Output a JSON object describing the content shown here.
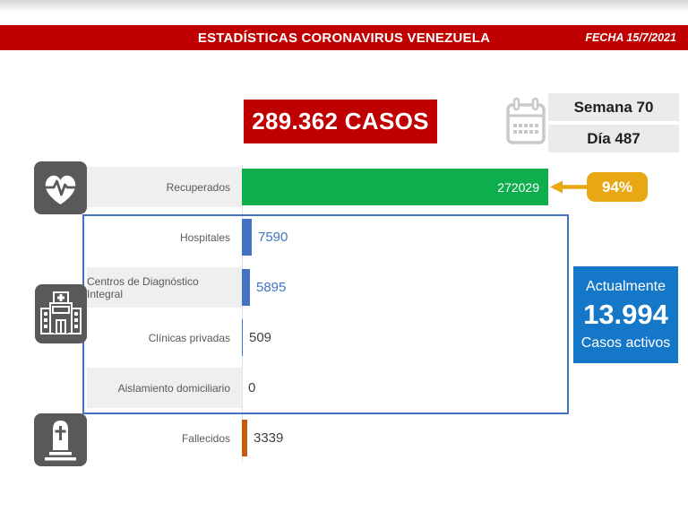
{
  "banner": {
    "title": "ESTADÍSTICAS CORONAVIRUS VENEZUELA",
    "date": "FECHA 15/7/2021"
  },
  "summary": {
    "total": "289.362 CASOS",
    "week": "Semana 70",
    "day": "Día 487"
  },
  "recovered": {
    "percent": "94%"
  },
  "active_box": {
    "heading": "Actualmente",
    "value": "13.994",
    "caption": "Casos activos"
  },
  "chart_data": {
    "type": "bar",
    "orientation": "horizontal",
    "title": "ESTADÍSTICAS CORONAVIRUS VENEZUELA",
    "categories": [
      "Recuperados",
      "Hospitales",
      "Centros de Diagnóstico Integral",
      "Clínicas privadas",
      "Aislamiento domiciliario",
      "Fallecidos"
    ],
    "values": [
      272029,
      7590,
      5895,
      509,
      0,
      3339
    ],
    "value_labels": [
      "272029",
      "7590",
      "5895",
      "509",
      "0",
      "3339"
    ],
    "bar_colors": [
      "#0fae4c",
      "#4472c4",
      "#4472c4",
      "#4472c4",
      "#4472c4",
      "#c55a11"
    ],
    "value_label_colors": [
      "#ffffff",
      "#4472c4",
      "#4472c4",
      "#404040",
      "#404040",
      "#404040"
    ],
    "xlim": [
      0,
      272029
    ],
    "gridlines": false,
    "legend": false,
    "annotations": [
      "94% recuperados",
      "Actualmente 13.994 casos activos"
    ]
  },
  "icons": {
    "recovered": "heart-pulse",
    "medical_network": "hospital-building",
    "deceased": "tombstone",
    "date": "calendar"
  },
  "colors": {
    "banner_red": "#c00000",
    "recovered_green": "#0fae4c",
    "badge_gold": "#e7a813",
    "bar_blue": "#4472c4",
    "active_blue": "#1577c8",
    "icon_gray": "#595959",
    "stripe_gray": "#efefef"
  }
}
